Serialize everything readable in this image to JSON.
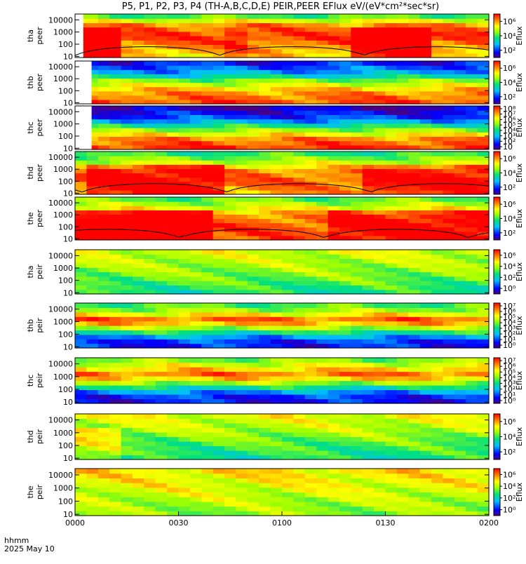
{
  "chart_data": {
    "type": "heatmap",
    "title": "P5, P1, P2, P3, P4 (TH-A,B,C,D,E) PEIR,PEER EFlux eV/(eV*cm²*sec*sr)",
    "x_axis": {
      "ticks": [
        "0000",
        "0030",
        "0100",
        "0130",
        "0200"
      ],
      "range": [
        "0000",
        "0200"
      ],
      "label_line1": "hhmm",
      "label_line2": "2025 May 10"
    },
    "colorbar_label": "Eflux",
    "y_tick_labels": [
      "10",
      "100",
      "1000",
      "10000"
    ],
    "panels": [
      {
        "label_top": "tha",
        "label_bottom": "peer",
        "energy_range": [
          8,
          30000
        ],
        "cbar_ticks": [
          "10²",
          "10⁴",
          "10⁶"
        ],
        "profile": [
          [
            0,
            6.0
          ],
          [
            0.3,
            7.0
          ],
          [
            0.5,
            7.5
          ],
          [
            0.75,
            6.8
          ],
          [
            1,
            3.5
          ]
        ],
        "hot_segments": [
          [
            0.01,
            0.12,
            1.7
          ],
          [
            0.35,
            0.42,
            0.6
          ],
          [
            0.68,
            0.85,
            1.8
          ]
        ],
        "gap_end": 0.02,
        "overlay": true
      },
      {
        "label_top": "thb",
        "label_bottom": "peer",
        "energy_range": [
          8,
          30000
        ],
        "cbar_ticks": [
          "10²",
          "10⁴",
          "10⁶"
        ],
        "profile": [
          [
            0,
            7.5
          ],
          [
            0.3,
            6.6
          ],
          [
            0.55,
            4.5
          ],
          [
            0.7,
            2.5
          ],
          [
            1,
            0.8
          ]
        ],
        "hot_segments": [],
        "gap_end": 0.04,
        "overlay": false
      },
      {
        "label_top": "thc",
        "label_bottom": "peer",
        "energy_range": [
          8,
          30000
        ],
        "cbar_ticks": [
          "10",
          "10²",
          "10³",
          "10⁴",
          "10⁵",
          "10⁶",
          "10⁷",
          "10⁸"
        ],
        "profile": [
          [
            0,
            7.8
          ],
          [
            0.25,
            6.8
          ],
          [
            0.5,
            4.2
          ],
          [
            0.7,
            1.6
          ],
          [
            1,
            0.2
          ]
        ],
        "hot_segments": [],
        "gap_end": 0.04,
        "overlay": false
      },
      {
        "label_top": "thd",
        "label_bottom": "peer",
        "energy_range": [
          8,
          30000
        ],
        "cbar_ticks": [
          "10²",
          "10⁴",
          "10⁶"
        ],
        "profile": [
          [
            0,
            6.5
          ],
          [
            0.3,
            7.2
          ],
          [
            0.55,
            6.8
          ],
          [
            0.78,
            5.0
          ],
          [
            1,
            3.5
          ]
        ],
        "hot_segments": [
          [
            0.02,
            0.35,
            1.3
          ],
          [
            0.7,
            1.0,
            1.1
          ]
        ],
        "gap_end": 0.0,
        "overlay": true
      },
      {
        "label_top": "the",
        "label_bottom": "peer",
        "energy_range": [
          8,
          30000
        ],
        "cbar_ticks": [
          "10²",
          "10⁴",
          "10⁶"
        ],
        "profile": [
          [
            0,
            7.2
          ],
          [
            0.3,
            7.4
          ],
          [
            0.6,
            6.8
          ],
          [
            0.8,
            5.2
          ],
          [
            1,
            4.0
          ]
        ],
        "hot_segments": [
          [
            0.0,
            0.32,
            1.6
          ],
          [
            0.6,
            1.0,
            1.0
          ]
        ],
        "gap_end": 0.0,
        "overlay": true
      },
      {
        "label_top": "tha",
        "label_bottom": "peir",
        "energy_range": [
          8,
          30000
        ],
        "cbar_ticks": [
          "10⁰",
          "10²",
          "10⁴",
          "10⁶"
        ],
        "profile": [
          [
            0,
            3.5
          ],
          [
            0.4,
            4.5
          ],
          [
            0.7,
            5.0
          ],
          [
            1,
            5.4
          ]
        ],
        "hot_segments": [],
        "gap_end": 0.0,
        "overlay": false
      },
      {
        "label_top": "thb",
        "label_bottom": "peir",
        "energy_range": [
          8,
          30000
        ],
        "cbar_ticks": [
          "10⁰",
          "10¹",
          "10²",
          "10³",
          "10⁴",
          "10⁵",
          "10⁶",
          "10⁷"
        ],
        "profile": [
          [
            0,
            1.0
          ],
          [
            0.2,
            1.5
          ],
          [
            0.4,
            4.2
          ],
          [
            0.62,
            7.4
          ],
          [
            0.82,
            5.0
          ],
          [
            1,
            3.8
          ]
        ],
        "hot_segments": [],
        "gap_end": 0.0,
        "overlay": false
      },
      {
        "label_top": "thc",
        "label_bottom": "peir",
        "energy_range": [
          8,
          30000
        ],
        "cbar_ticks": [
          "10⁰",
          "10¹",
          "10²",
          "10³",
          "10⁴",
          "10⁵",
          "10⁶",
          "10⁷"
        ],
        "profile": [
          [
            0,
            0.9
          ],
          [
            0.2,
            1.4
          ],
          [
            0.4,
            4.0
          ],
          [
            0.62,
            7.2
          ],
          [
            0.82,
            5.6
          ],
          [
            1,
            4.2
          ]
        ],
        "hot_segments": [],
        "gap_end": 0.0,
        "overlay": false
      },
      {
        "label_top": "thd",
        "label_bottom": "peir",
        "energy_range": [
          8,
          30000
        ],
        "cbar_ticks": [
          "10²",
          "10⁴",
          "10⁶"
        ],
        "profile": [
          [
            0,
            3.5
          ],
          [
            0.35,
            4.2
          ],
          [
            0.65,
            5.0
          ],
          [
            1,
            5.6
          ]
        ],
        "hot_segments": [
          [
            0.0,
            0.12,
            1.2
          ]
        ],
        "gap_end": 0.0,
        "overlay": false
      },
      {
        "label_top": "the",
        "label_bottom": "peir",
        "energy_range": [
          8,
          30000
        ],
        "cbar_ticks": [
          "10⁰",
          "10²",
          "10⁴",
          "10⁶"
        ],
        "profile": [
          [
            0,
            4.6
          ],
          [
            0.3,
            5.0
          ],
          [
            0.6,
            5.5
          ],
          [
            1,
            6.0
          ]
        ],
        "hot_segments": [],
        "gap_end": 0.0,
        "overlay": false
      }
    ]
  }
}
